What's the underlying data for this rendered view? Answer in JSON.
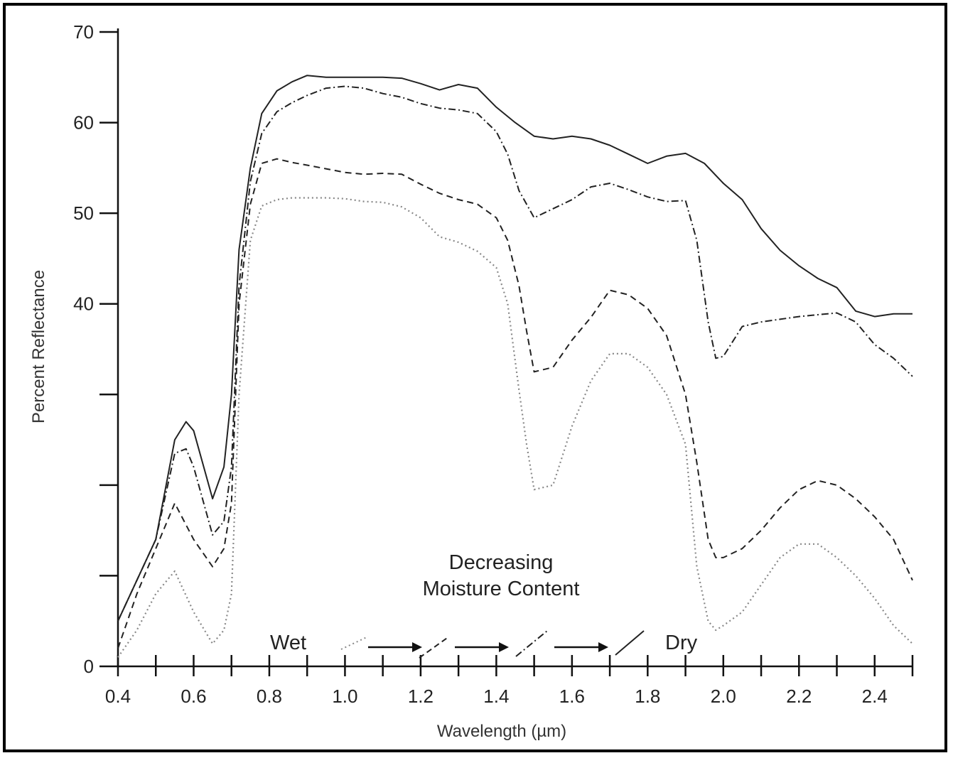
{
  "chart_data": {
    "type": "line",
    "title": "",
    "xlabel": "Wavelength (µm)",
    "ylabel": "Percent Reflectance",
    "xlim": [
      0.4,
      2.5
    ],
    "ylim": [
      0,
      70
    ],
    "x_tick_labels": [
      "0.4",
      "0.6",
      "0.8",
      "1.0",
      "1.2",
      "1.4",
      "1.6",
      "1.8",
      "2.0",
      "2.2",
      "2.4"
    ],
    "x_tick_values": [
      0.4,
      0.6,
      0.8,
      1.0,
      1.2,
      1.4,
      1.6,
      1.8,
      2.0,
      2.2,
      2.4
    ],
    "y_tick_labels": [
      "0",
      "40",
      "50",
      "60",
      "70"
    ],
    "y_tick_values": [
      0,
      40,
      50,
      60,
      70
    ],
    "y_minor_ticks": [
      10,
      20,
      30
    ],
    "grid": false,
    "series": [
      {
        "style": "solid",
        "x": [
          0.4,
          0.5,
          0.55,
          0.58,
          0.6,
          0.65,
          0.68,
          0.7,
          0.72,
          0.75,
          0.78,
          0.82,
          0.86,
          0.9,
          0.95,
          1.0,
          1.1,
          1.15,
          1.2,
          1.25,
          1.3,
          1.35,
          1.4,
          1.45,
          1.5,
          1.55,
          1.6,
          1.65,
          1.7,
          1.75,
          1.8,
          1.85,
          1.9,
          1.95,
          2.0,
          2.05,
          2.1,
          2.15,
          2.2,
          2.25,
          2.3,
          2.35,
          2.4,
          2.45,
          2.5
        ],
        "y": [
          5,
          14,
          25,
          27,
          26,
          18.5,
          22,
          30,
          46,
          55,
          61,
          63.5,
          64.5,
          65.2,
          65,
          65,
          65,
          64.9,
          64.3,
          63.6,
          64.2,
          63.8,
          61.7,
          60,
          58.5,
          58.2,
          58.5,
          58.2,
          57.5,
          56.5,
          55.5,
          56.3,
          56.6,
          55.5,
          53.3,
          51.5,
          48.3,
          45.9,
          44.2,
          42.8,
          41.8,
          39.2,
          38.6,
          38.9,
          38.9
        ]
      },
      {
        "style": "dash-dot",
        "x": [
          0.4,
          0.5,
          0.55,
          0.58,
          0.6,
          0.65,
          0.68,
          0.7,
          0.72,
          0.75,
          0.78,
          0.82,
          0.86,
          0.9,
          0.95,
          1.0,
          1.05,
          1.1,
          1.15,
          1.2,
          1.25,
          1.3,
          1.35,
          1.4,
          1.43,
          1.46,
          1.5,
          1.55,
          1.6,
          1.65,
          1.7,
          1.75,
          1.8,
          1.85,
          1.9,
          1.93,
          1.96,
          1.98,
          2.0,
          2.05,
          2.1,
          2.15,
          2.2,
          2.25,
          2.3,
          2.35,
          2.4,
          2.45,
          2.5
        ],
        "y": [
          5,
          14,
          23.5,
          24,
          22,
          14.5,
          16,
          22,
          42,
          53.5,
          58.8,
          61.2,
          62.2,
          63,
          63.8,
          64,
          63.8,
          63.2,
          62.8,
          62.1,
          61.6,
          61.4,
          61,
          59,
          56.5,
          52.5,
          49.5,
          50.5,
          51.5,
          52.9,
          53.3,
          52.6,
          51.8,
          51.3,
          51.4,
          47,
          38,
          34,
          34.2,
          37.5,
          38,
          38.3,
          38.6,
          38.8,
          39,
          38,
          35.5,
          34,
          32
        ]
      },
      {
        "style": "dashed",
        "x": [
          0.4,
          0.45,
          0.5,
          0.55,
          0.6,
          0.65,
          0.68,
          0.7,
          0.72,
          0.75,
          0.78,
          0.82,
          0.86,
          0.9,
          0.95,
          1.0,
          1.05,
          1.1,
          1.15,
          1.2,
          1.25,
          1.3,
          1.35,
          1.4,
          1.43,
          1.46,
          1.48,
          1.5,
          1.55,
          1.6,
          1.65,
          1.7,
          1.75,
          1.8,
          1.85,
          1.9,
          1.93,
          1.96,
          1.98,
          2.0,
          2.05,
          2.1,
          2.15,
          2.2,
          2.25,
          2.3,
          2.35,
          2.4,
          2.45,
          2.5
        ],
        "y": [
          2,
          8,
          13,
          18,
          14,
          11,
          13,
          18,
          40,
          51,
          55.5,
          56,
          55.6,
          55.3,
          54.9,
          54.5,
          54.3,
          54.4,
          54.3,
          53.2,
          52.2,
          51.5,
          51,
          49.5,
          47,
          42,
          37,
          32.5,
          33,
          36,
          38.5,
          41.5,
          41,
          39.5,
          36.5,
          30,
          22.5,
          14,
          12,
          12,
          13,
          15,
          17.5,
          19.5,
          20.5,
          20,
          18.5,
          16.5,
          14,
          9.5
        ]
      },
      {
        "style": "dotted",
        "x": [
          0.4,
          0.45,
          0.5,
          0.55,
          0.6,
          0.65,
          0.68,
          0.7,
          0.72,
          0.75,
          0.78,
          0.82,
          0.86,
          0.9,
          0.95,
          1.0,
          1.05,
          1.1,
          1.15,
          1.2,
          1.25,
          1.3,
          1.35,
          1.4,
          1.43,
          1.46,
          1.48,
          1.5,
          1.55,
          1.6,
          1.65,
          1.7,
          1.75,
          1.8,
          1.85,
          1.9,
          1.93,
          1.96,
          1.98,
          2.0,
          2.05,
          2.1,
          2.15,
          2.2,
          2.25,
          2.3,
          2.35,
          2.4,
          2.45,
          2.5
        ],
        "y": [
          1,
          4,
          8,
          10.5,
          6,
          2.5,
          4,
          8,
          30,
          47,
          50.8,
          51.5,
          51.7,
          51.7,
          51.7,
          51.6,
          51.3,
          51.2,
          50.7,
          49.5,
          47.4,
          46.8,
          45.8,
          44,
          40,
          30.5,
          24.5,
          19.5,
          20,
          26.5,
          31.5,
          34.5,
          34.5,
          33,
          30,
          24.5,
          11,
          5,
          4,
          4.5,
          6,
          9,
          12,
          13.5,
          13.5,
          12,
          10,
          7.5,
          4.5,
          2.5
        ]
      }
    ]
  },
  "annotations": {
    "title_line1": "Decreasing",
    "title_line2": "Moisture Content",
    "wet": "Wet",
    "dry": "Dry"
  },
  "colors": {
    "line": "#222222",
    "dotted": "#888888",
    "frame": "#000000"
  }
}
